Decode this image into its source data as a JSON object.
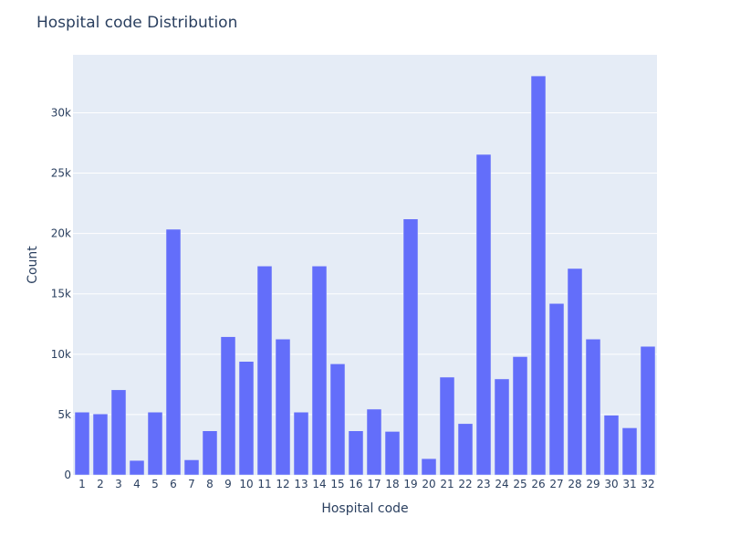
{
  "chart_data": {
    "type": "bar",
    "title": "Hospital code Distribution",
    "xlabel": "Hospital code",
    "ylabel": "Count",
    "categories": [
      "1",
      "2",
      "3",
      "4",
      "5",
      "6",
      "7",
      "8",
      "9",
      "10",
      "11",
      "12",
      "13",
      "14",
      "15",
      "16",
      "17",
      "18",
      "19",
      "20",
      "21",
      "22",
      "23",
      "24",
      "25",
      "26",
      "27",
      "28",
      "29",
      "30",
      "31",
      "32"
    ],
    "values": [
      5200,
      5050,
      7050,
      1200,
      5200,
      20350,
      1250,
      3650,
      11450,
      9400,
      17300,
      11250,
      5200,
      17300,
      9200,
      3650,
      5450,
      3600,
      21200,
      1350,
      8100,
      4250,
      26550,
      7950,
      9800,
      33050,
      14200,
      17100,
      11250,
      4950,
      3900,
      10650
    ],
    "ylim": [
      0,
      34800
    ],
    "yticks": [
      0,
      5000,
      10000,
      15000,
      20000,
      25000,
      30000
    ],
    "ytick_labels": [
      "0",
      "5k",
      "10k",
      "15k",
      "20k",
      "25k",
      "30k"
    ],
    "grid": true,
    "colors": {
      "bar": "#636efa",
      "plot_bg": "#e5ecf6",
      "grid": "#ffffff",
      "text": "#2a3f5f"
    }
  }
}
